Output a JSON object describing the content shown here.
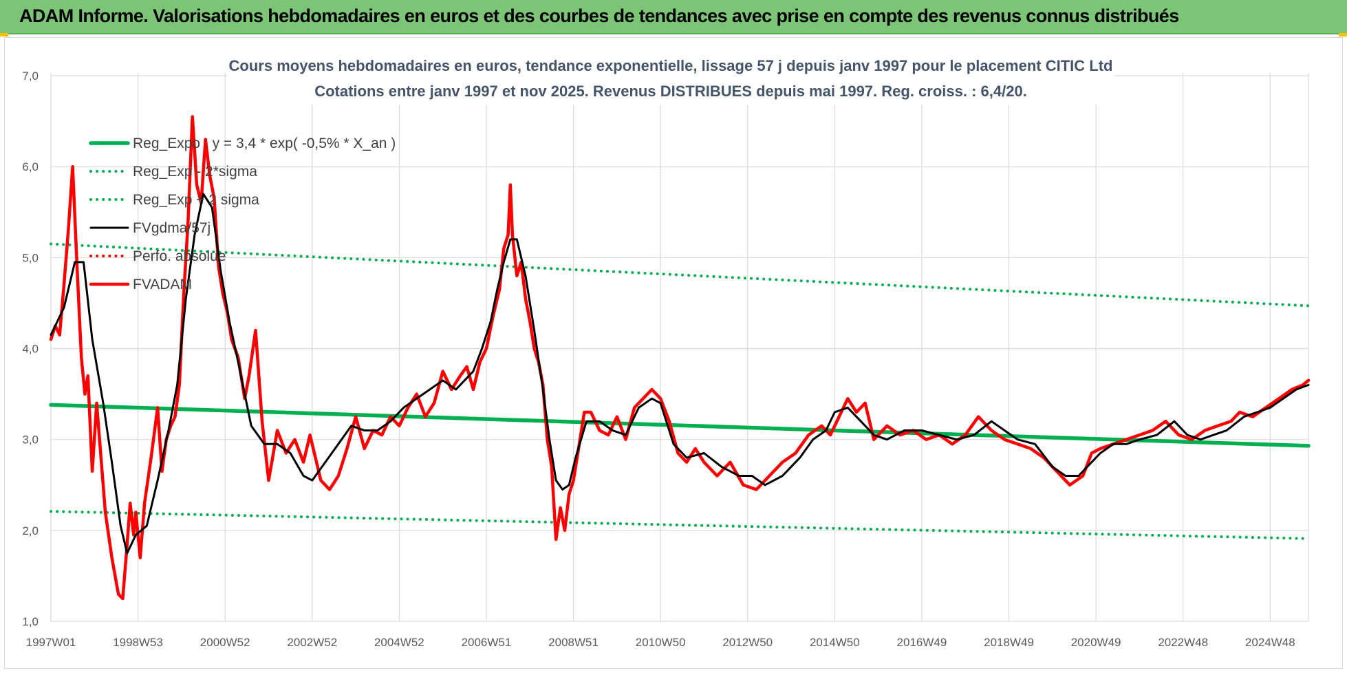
{
  "banner": {
    "title": "ADAM Informe. Valorisations hebdomadaires en euros et des courbes de tendances avec prise en compte des revenus connus distribués"
  },
  "colors": {
    "banner_bg": "#7cc576",
    "regression": "#00b050",
    "fv_adam": "#ff0000",
    "fv_gdma": "#000000",
    "gridline": "#d9d9d9",
    "corner_accent": "#f2c200"
  },
  "chart_data": {
    "type": "line",
    "title": "Cours moyens hebdomadaires en euros, tendance exponentielle, lissage 57 j depuis janv 1997 pour le placement CITIC Ltd",
    "subtitle": "Cotations entre janv 1997 et nov 2025. Revenus DISTRIBUES depuis mai 1997. Reg. croiss. : 6,4/20.",
    "xlabel": "",
    "ylabel": "",
    "ylim": [
      1.0,
      7.0
    ],
    "xlim": [
      1997.0,
      2025.88
    ],
    "grid": true,
    "legend_position": "top-left",
    "y_ticks": [
      "1,0",
      "2,0",
      "3,0",
      "4,0",
      "5,0",
      "6,0",
      "7,0"
    ],
    "x_ticks": [
      {
        "label": "1997W01",
        "x": 1997.0
      },
      {
        "label": "1998W53",
        "x": 1999.0
      },
      {
        "label": "2000W52",
        "x": 2001.0
      },
      {
        "label": "2002W52",
        "x": 2003.0
      },
      {
        "label": "2004W52",
        "x": 2005.0
      },
      {
        "label": "2006W51",
        "x": 2007.0
      },
      {
        "label": "2008W51",
        "x": 2009.0
      },
      {
        "label": "2010W50",
        "x": 2011.0
      },
      {
        "label": "2012W50",
        "x": 2013.0
      },
      {
        "label": "2014W50",
        "x": 2015.0
      },
      {
        "label": "2016W49",
        "x": 2017.0
      },
      {
        "label": "2018W49",
        "x": 2019.0
      },
      {
        "label": "2020W49",
        "x": 2021.0
      },
      {
        "label": "2022W48",
        "x": 2023.0
      },
      {
        "label": "2024W48",
        "x": 2025.0
      }
    ],
    "series": [
      {
        "name": "Reg_Expo : y = 3,4 * exp( -0,5% *  X_an )",
        "style": "solid-thick",
        "color": "#00b050",
        "x": [
          1997.0,
          2025.88
        ],
        "y": [
          3.38,
          2.93
        ]
      },
      {
        "name": "Reg_Exp - 2*sigma",
        "style": "dotted",
        "color": "#00b050",
        "x": [
          1997.0,
          2025.88
        ],
        "y": [
          2.21,
          1.91
        ]
      },
      {
        "name": "Reg_Exp + 2 sigma",
        "style": "dotted",
        "color": "#00b050",
        "x": [
          1997.0,
          2025.88
        ],
        "y": [
          5.15,
          4.47
        ]
      },
      {
        "name": "FVgdma/57j",
        "style": "solid",
        "color": "#000000",
        "x": [
          1997.0,
          1997.3,
          1997.55,
          1997.75,
          1997.95,
          1998.2,
          1998.4,
          1998.6,
          1998.75,
          1998.95,
          1999.2,
          1999.45,
          1999.7,
          1999.9,
          2000.1,
          2000.3,
          2000.5,
          2000.7,
          2000.9,
          2001.1,
          2001.3,
          2001.6,
          2001.9,
          2002.2,
          2002.5,
          2002.8,
          2003.0,
          2003.3,
          2003.6,
          2003.9,
          2004.2,
          2004.5,
          2004.8,
          2005.1,
          2005.4,
          2005.7,
          2006.0,
          2006.3,
          2006.5,
          2006.7,
          2006.9,
          2007.1,
          2007.25,
          2007.4,
          2007.55,
          2007.7,
          2007.9,
          2008.1,
          2008.3,
          2008.45,
          2008.6,
          2008.75,
          2008.9,
          2009.05,
          2009.3,
          2009.6,
          2009.9,
          2010.2,
          2010.5,
          2010.8,
          2011.0,
          2011.3,
          2011.6,
          2012.0,
          2012.4,
          2012.8,
          2013.1,
          2013.4,
          2013.8,
          2014.2,
          2014.5,
          2014.8,
          2015.0,
          2015.3,
          2015.6,
          2015.9,
          2016.2,
          2016.6,
          2017.0,
          2017.4,
          2017.8,
          2018.2,
          2018.6,
          2018.9,
          2019.2,
          2019.6,
          2020.0,
          2020.3,
          2020.6,
          2020.9,
          2021.1,
          2021.4,
          2021.7,
          2022.0,
          2022.4,
          2022.8,
          2023.1,
          2023.4,
          2023.7,
          2024.0,
          2024.4,
          2024.7,
          2025.0,
          2025.3,
          2025.6,
          2025.88
        ],
        "y": [
          4.15,
          4.45,
          4.95,
          4.95,
          4.1,
          3.4,
          2.75,
          2.05,
          1.75,
          1.95,
          2.05,
          2.55,
          3.1,
          3.6,
          4.55,
          5.25,
          5.7,
          5.55,
          4.85,
          4.3,
          3.85,
          3.15,
          2.95,
          2.95,
          2.85,
          2.6,
          2.55,
          2.75,
          2.95,
          3.15,
          3.1,
          3.1,
          3.2,
          3.35,
          3.45,
          3.55,
          3.65,
          3.55,
          3.65,
          3.75,
          4.0,
          4.3,
          4.65,
          4.95,
          5.2,
          5.2,
          4.8,
          4.2,
          3.55,
          3.0,
          2.55,
          2.45,
          2.5,
          2.8,
          3.2,
          3.2,
          3.1,
          3.05,
          3.35,
          3.45,
          3.4,
          2.95,
          2.8,
          2.85,
          2.7,
          2.6,
          2.6,
          2.5,
          2.6,
          2.8,
          3.0,
          3.1,
          3.3,
          3.35,
          3.2,
          3.05,
          3.0,
          3.1,
          3.1,
          3.05,
          3.0,
          3.05,
          3.2,
          3.1,
          3.0,
          2.95,
          2.7,
          2.6,
          2.6,
          2.75,
          2.85,
          2.95,
          2.95,
          3.0,
          3.05,
          3.2,
          3.05,
          3.0,
          3.05,
          3.1,
          3.25,
          3.3,
          3.35,
          3.45,
          3.55,
          3.6
        ]
      },
      {
        "name": "Perfo. absolue",
        "style": "dotted",
        "color": "#ff0000",
        "x": [],
        "y": []
      },
      {
        "name": "FVADAM",
        "style": "solid-thick",
        "color": "#ff0000",
        "x": [
          1997.0,
          1997.1,
          1997.2,
          1997.3,
          1997.4,
          1997.5,
          1997.6,
          1997.7,
          1997.78,
          1997.85,
          1997.95,
          1998.05,
          1998.15,
          1998.25,
          1998.4,
          1998.55,
          1998.65,
          1998.75,
          1998.82,
          1998.9,
          1998.95,
          1999.05,
          1999.15,
          1999.3,
          1999.45,
          1999.55,
          1999.65,
          1999.75,
          1999.85,
          1999.95,
          2000.05,
          2000.15,
          2000.25,
          2000.35,
          2000.45,
          2000.55,
          2000.65,
          2000.75,
          2000.85,
          2000.95,
          2001.05,
          2001.15,
          2001.3,
          2001.45,
          2001.55,
          2001.7,
          2001.85,
          2002.0,
          2002.2,
          2002.4,
          2002.6,
          2002.8,
          2002.95,
          2003.2,
          2003.4,
          2003.6,
          2003.8,
          2004.0,
          2004.2,
          2004.4,
          2004.6,
          2004.8,
          2005.0,
          2005.2,
          2005.4,
          2005.6,
          2005.8,
          2006.0,
          2006.2,
          2006.4,
          2006.55,
          2006.7,
          2006.85,
          2007.0,
          2007.15,
          2007.3,
          2007.4,
          2007.5,
          2007.55,
          2007.6,
          2007.7,
          2007.8,
          2007.9,
          2008.0,
          2008.1,
          2008.2,
          2008.3,
          2008.4,
          2008.5,
          2008.6,
          2008.7,
          2008.8,
          2008.9,
          2009.0,
          2009.1,
          2009.25,
          2009.4,
          2009.6,
          2009.8,
          2010.0,
          2010.2,
          2010.4,
          2010.6,
          2010.8,
          2011.0,
          2011.2,
          2011.4,
          2011.6,
          2011.8,
          2012.0,
          2012.3,
          2012.6,
          2012.9,
          2013.2,
          2013.5,
          2013.8,
          2014.1,
          2014.4,
          2014.7,
          2014.9,
          2015.1,
          2015.3,
          2015.5,
          2015.7,
          2015.9,
          2016.2,
          2016.5,
          2016.8,
          2017.1,
          2017.4,
          2017.7,
          2018.0,
          2018.3,
          2018.6,
          2018.9,
          2019.2,
          2019.5,
          2019.8,
          2020.1,
          2020.4,
          2020.7,
          2020.9,
          2021.1,
          2021.4,
          2021.7,
          2022.0,
          2022.3,
          2022.6,
          2022.9,
          2023.2,
          2023.5,
          2023.8,
          2024.1,
          2024.3,
          2024.6,
          2024.9,
          2025.2,
          2025.5,
          2025.75,
          2025.88
        ],
        "y": [
          4.1,
          4.25,
          4.15,
          4.7,
          5.3,
          6.0,
          4.9,
          3.9,
          3.5,
          3.7,
          2.65,
          3.4,
          2.8,
          2.2,
          1.7,
          1.3,
          1.25,
          1.85,
          2.3,
          1.95,
          2.2,
          1.7,
          2.3,
          2.8,
          3.35,
          2.65,
          3.0,
          3.15,
          3.25,
          3.6,
          4.6,
          5.4,
          6.55,
          5.8,
          5.6,
          6.3,
          5.9,
          5.65,
          4.9,
          4.6,
          4.4,
          4.1,
          3.9,
          3.45,
          3.7,
          4.2,
          3.2,
          2.55,
          3.1,
          2.85,
          3.0,
          2.75,
          3.05,
          2.55,
          2.45,
          2.6,
          2.9,
          3.25,
          2.9,
          3.1,
          3.05,
          3.25,
          3.15,
          3.35,
          3.5,
          3.25,
          3.4,
          3.75,
          3.55,
          3.7,
          3.8,
          3.55,
          3.85,
          4.0,
          4.35,
          4.65,
          5.1,
          5.25,
          5.8,
          5.25,
          4.8,
          4.95,
          4.55,
          4.3,
          4.0,
          3.85,
          3.6,
          3.0,
          2.7,
          1.9,
          2.25,
          2.0,
          2.4,
          2.55,
          2.85,
          3.3,
          3.3,
          3.1,
          3.05,
          3.25,
          3.0,
          3.35,
          3.45,
          3.55,
          3.45,
          3.2,
          2.85,
          2.75,
          2.9,
          2.75,
          2.6,
          2.75,
          2.5,
          2.45,
          2.6,
          2.75,
          2.85,
          3.05,
          3.15,
          3.05,
          3.25,
          3.45,
          3.3,
          3.4,
          3.0,
          3.15,
          3.05,
          3.1,
          3.0,
          3.05,
          2.95,
          3.05,
          3.25,
          3.1,
          3.0,
          2.95,
          2.9,
          2.8,
          2.65,
          2.5,
          2.6,
          2.85,
          2.9,
          2.95,
          3.0,
          3.05,
          3.1,
          3.2,
          3.05,
          3.0,
          3.1,
          3.15,
          3.2,
          3.3,
          3.25,
          3.35,
          3.45,
          3.55,
          3.6,
          3.65
        ]
      }
    ]
  }
}
